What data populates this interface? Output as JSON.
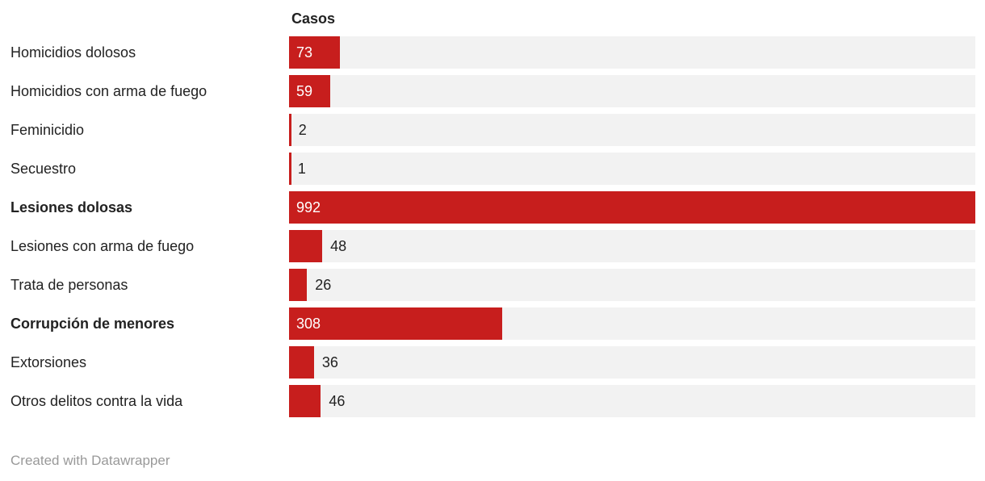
{
  "chart_data": {
    "type": "bar",
    "orientation": "horizontal",
    "title": "",
    "value_column_label": "Casos",
    "axis_max": 992,
    "grid": false,
    "rows": [
      {
        "label": "Homicidios dolosos",
        "value": 73,
        "emphasis": false
      },
      {
        "label": "Homicidios con arma de fuego",
        "value": 59,
        "emphasis": false
      },
      {
        "label": "Feminicidio",
        "value": 2,
        "emphasis": false
      },
      {
        "label": "Secuestro",
        "value": 1,
        "emphasis": false
      },
      {
        "label": "Lesiones dolosas",
        "value": 992,
        "emphasis": true
      },
      {
        "label": "Lesiones con arma de fuego",
        "value": 48,
        "emphasis": false
      },
      {
        "label": "Trata de personas",
        "value": 26,
        "emphasis": false
      },
      {
        "label": "Corrupción de menores",
        "value": 308,
        "emphasis": true
      },
      {
        "label": "Extorsiones",
        "value": 36,
        "emphasis": false
      },
      {
        "label": "Otros delitos contra la vida",
        "value": 46,
        "emphasis": false
      }
    ]
  },
  "footer": {
    "attribution": "Created with Datawrapper"
  },
  "colors": {
    "bar_red": "#c71e1d",
    "track_gray": "#f2f2f2",
    "label_text": "#222222",
    "value_inside_text": "#ffffff",
    "attribution_text": "#999999"
  }
}
